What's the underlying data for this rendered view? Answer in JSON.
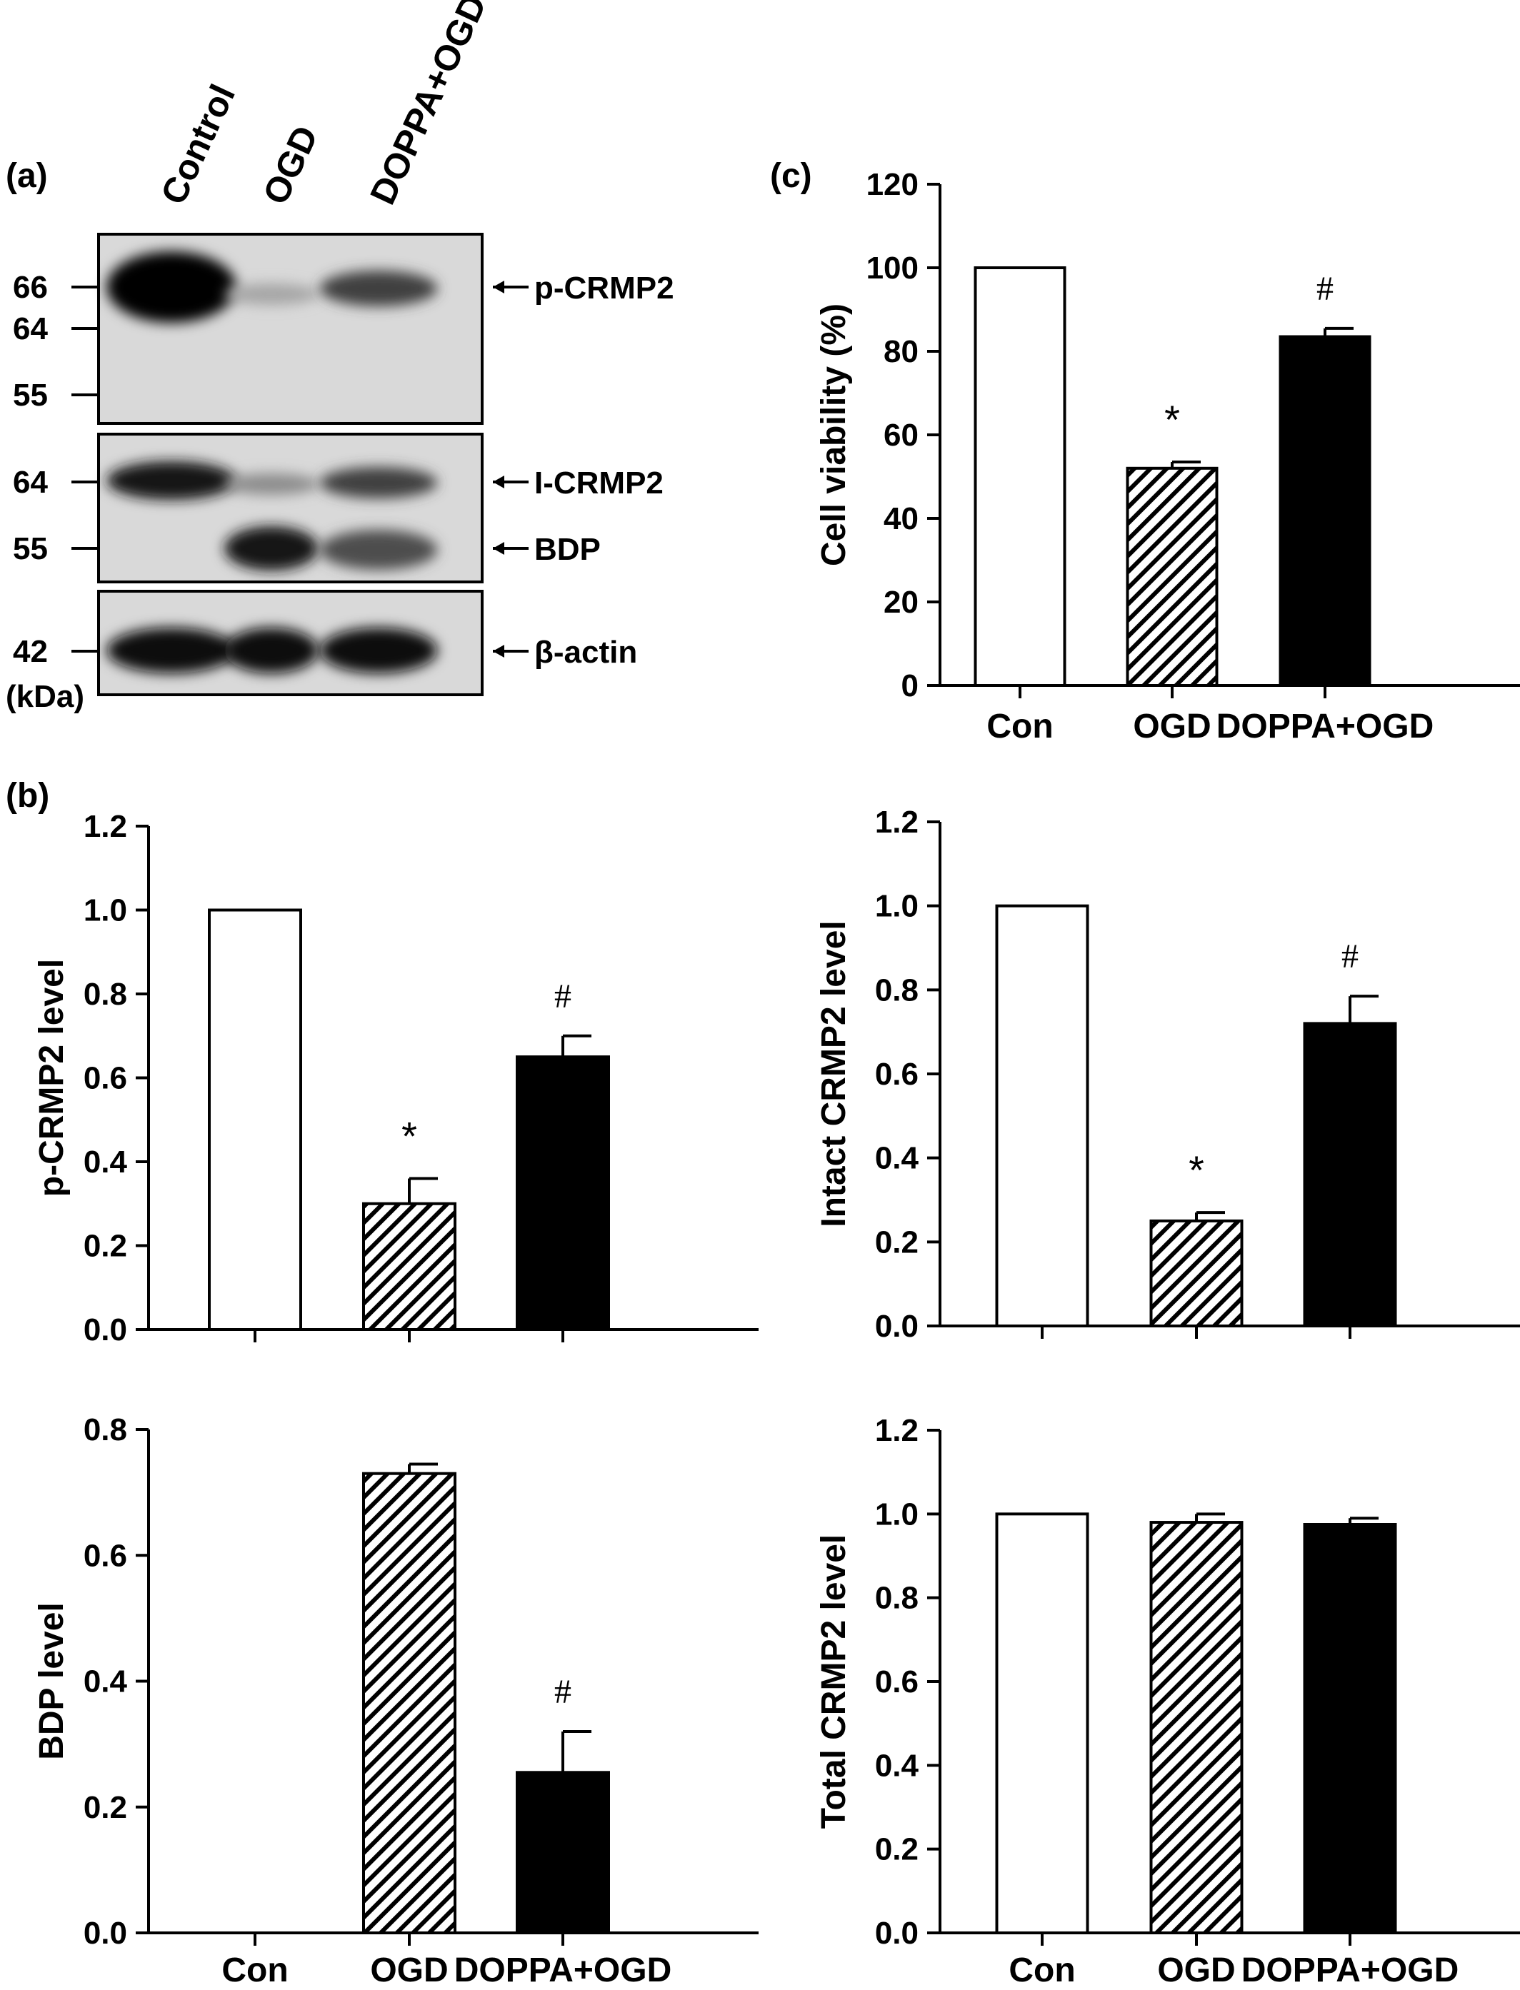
{
  "panels": {
    "a": "(a)",
    "b": "(b)",
    "c": "(c)"
  },
  "blot": {
    "lanes": [
      "Control",
      "OGD",
      "DOPPA+OGD"
    ],
    "mw_unit": "(kDa)",
    "blocks": [
      {
        "markers": [
          "66",
          "64",
          "55"
        ],
        "bands": [
          {
            "label": "p-CRMP2",
            "intensity": [
              1.0,
              0.35,
              0.75
            ]
          }
        ]
      },
      {
        "markers": [
          "64",
          "55"
        ],
        "bands": [
          {
            "label": "I-CRMP2",
            "intensity": [
              0.9,
              0.45,
              0.75
            ]
          },
          {
            "label": "BDP",
            "intensity": [
              0.0,
              0.9,
              0.7
            ]
          }
        ]
      },
      {
        "markers": [
          "42"
        ],
        "bands": [
          {
            "label": "β-actin",
            "intensity": [
              0.95,
              0.95,
              0.95
            ]
          }
        ]
      }
    ]
  },
  "chart_data": [
    {
      "id": "c",
      "type": "bar",
      "categories": [
        "Con",
        "OGD",
        "DOPPA+OGD"
      ],
      "values": [
        100,
        52,
        83.5
      ],
      "errors": [
        0,
        1.5,
        2
      ],
      "ylabel": "Cell viability (%)",
      "xlabel": "",
      "ylim": [
        0,
        120
      ],
      "yticks": [
        "0",
        "20",
        "40",
        "60",
        "80",
        "100",
        "120"
      ],
      "annotations": [
        "",
        "*",
        "#"
      ],
      "show_xlabels": true
    },
    {
      "id": "b1",
      "type": "bar",
      "categories": [
        "Con",
        "OGD",
        "DOPPA+OGD"
      ],
      "values": [
        1.0,
        0.3,
        0.65
      ],
      "errors": [
        0,
        0.06,
        0.05
      ],
      "ylabel": "p-CRMP2 level",
      "xlabel": "",
      "ylim": [
        0,
        1.2
      ],
      "yticks": [
        "0.0",
        "0.2",
        "0.4",
        "0.6",
        "0.8",
        "1.0",
        "1.2"
      ],
      "annotations": [
        "",
        "*",
        "#"
      ],
      "show_xlabels": false
    },
    {
      "id": "b2",
      "type": "bar",
      "categories": [
        "Con",
        "OGD",
        "DOPPA+OGD"
      ],
      "values": [
        1.0,
        0.25,
        0.72
      ],
      "errors": [
        0,
        0.02,
        0.065
      ],
      "ylabel": "Intact CRMP2 level",
      "xlabel": "",
      "ylim": [
        0,
        1.2
      ],
      "yticks": [
        "0.0",
        "0.2",
        "0.4",
        "0.6",
        "0.8",
        "1.0",
        "1.2"
      ],
      "annotations": [
        "",
        "*",
        "#"
      ],
      "show_xlabels": false
    },
    {
      "id": "b3",
      "type": "bar",
      "categories": [
        "Con",
        "OGD",
        "DOPPA+OGD"
      ],
      "values": [
        0,
        0.73,
        0.255
      ],
      "errors": [
        0,
        0.015,
        0.065
      ],
      "ylabel": "BDP level",
      "xlabel": "",
      "ylim": [
        0,
        0.8
      ],
      "yticks": [
        "0.0",
        "0.2",
        "0.4",
        "0.6",
        "0.8"
      ],
      "annotations": [
        "",
        "",
        "#"
      ],
      "show_xlabels": true
    },
    {
      "id": "b4",
      "type": "bar",
      "categories": [
        "Con",
        "OGD",
        "DOPPA+OGD"
      ],
      "values": [
        1.0,
        0.98,
        0.975
      ],
      "errors": [
        0,
        0.02,
        0.015
      ],
      "ylabel": "Total CRMP2 level",
      "xlabel": "",
      "ylim": [
        0,
        1.2
      ],
      "yticks": [
        "0.0",
        "0.2",
        "0.4",
        "0.6",
        "0.8",
        "1.0",
        "1.2"
      ],
      "annotations": [
        "",
        "",
        ""
      ],
      "show_xlabels": true
    }
  ],
  "styles": {
    "fills": [
      "open",
      "hatched",
      "solid"
    ],
    "ink": "#000000",
    "paper": "#ffffff"
  }
}
